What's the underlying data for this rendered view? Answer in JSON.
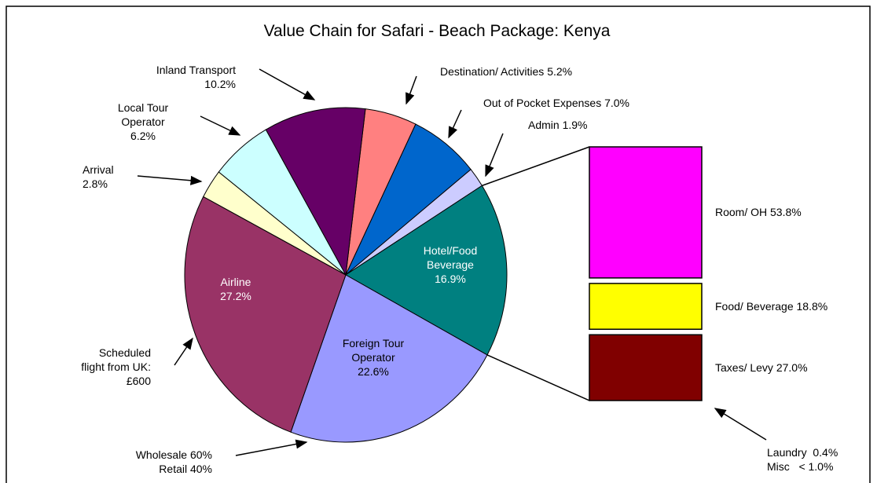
{
  "chart_data": [
    {
      "type": "pie",
      "title": "Value Chain for Safari - Beach Package: Kenya",
      "categories": [
        "Destination/ Activities",
        "Out of Pocket Expenses",
        "Admin",
        "Hotel/Food Beverage",
        "Foreign Tour Operator",
        "Airline",
        "Arrival",
        "Local Tour Operator",
        "Inland Transport"
      ],
      "values": [
        5.2,
        7.0,
        1.9,
        16.9,
        22.6,
        27.2,
        2.8,
        6.2,
        10.2
      ],
      "value_labels": [
        "5.2%",
        "7.0%",
        "1.9%",
        "16.9%",
        "22.6%",
        "27.2%",
        "2.8%",
        "6.2%",
        "10.2%"
      ],
      "colors": [
        "#ff8080",
        "#0066cc",
        "#ccccff",
        "#008080",
        "#9999ff",
        "#993366",
        "#ffffcc",
        "#ccffff",
        "#660066"
      ],
      "annotations": [
        [
          "Scheduled",
          "flight from UK:",
          "£600"
        ],
        [
          "Wholesale 60%",
          "Retail 40%"
        ]
      ]
    },
    {
      "type": "stacked_bar",
      "categories": [
        "Room/ OH",
        "Food/ Beverage",
        "Taxes/ Levy"
      ],
      "values": [
        53.8,
        18.8,
        27.0
      ],
      "value_labels": [
        "53.8%",
        "18.8%",
        "27.0%"
      ],
      "colors": [
        "#ff00ff",
        "#ffff00",
        "#800000"
      ],
      "annotations": [
        "Laundry  0.4%",
        "Misc   < 1.0%"
      ]
    }
  ]
}
